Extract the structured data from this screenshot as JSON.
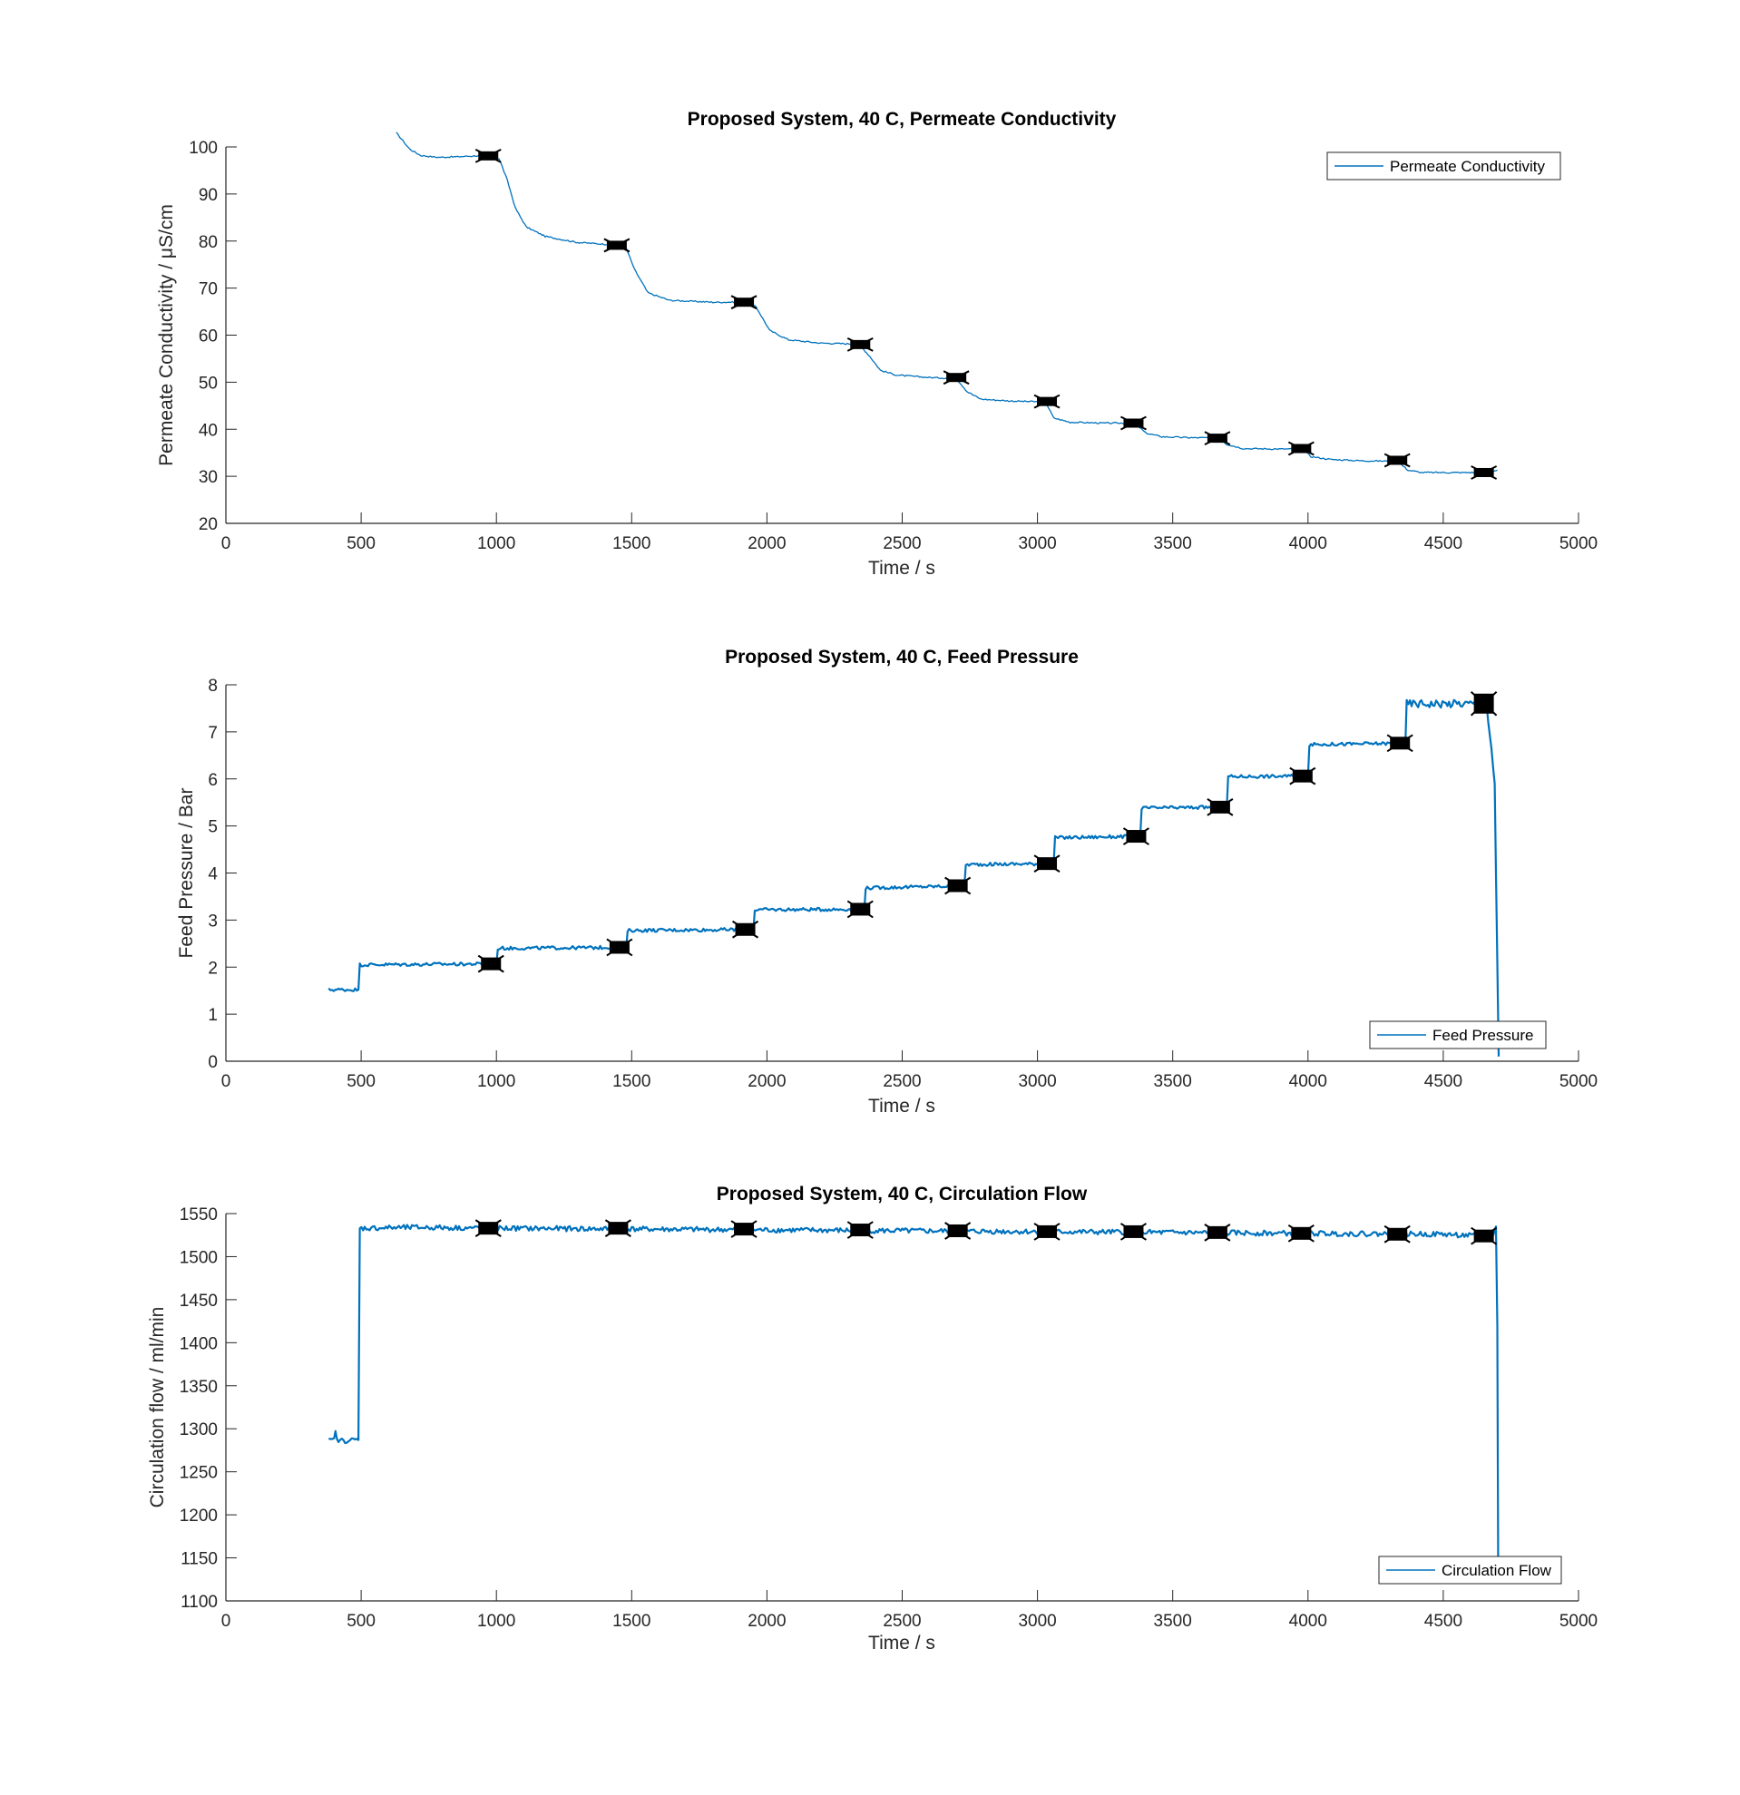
{
  "charts": [
    {
      "title": "Proposed System, 40 C, Permeate Conductivity",
      "xlabel": "Time / s",
      "ylabel": "Permeate Conductivity / μS/cm",
      "legend": "Permeate Conductivity"
    },
    {
      "title": "Proposed System, 40 C, Feed Pressure",
      "xlabel": "Time / s",
      "ylabel": "Feed Pressure / Bar",
      "legend": "Feed Pressure"
    },
    {
      "title": "Proposed System, 40 C, Circulation Flow",
      "xlabel": "Time / s",
      "ylabel": "Circulation flow / ml/min",
      "legend": "Circulation Flow"
    }
  ],
  "chart_data": [
    {
      "type": "line",
      "title": "Proposed System, 40 C, Permeate Conductivity",
      "xlabel": "Time / s",
      "ylabel": "Permeate Conductivity / μS/cm",
      "xlim": [
        0,
        5000
      ],
      "ylim": [
        20,
        100
      ],
      "xticks": [
        0,
        500,
        1000,
        1500,
        2000,
        2500,
        3000,
        3500,
        4000,
        4500,
        5000
      ],
      "yticks": [
        20,
        30,
        40,
        50,
        60,
        70,
        80,
        90,
        100
      ],
      "grid": false,
      "legend_position": "top-right",
      "line_color": "#0072BD",
      "marker_color": "#000000",
      "series": [
        {
          "name": "Permeate Conductivity",
          "x": [
            630,
            680,
            720,
            780,
            850,
            960,
            1010,
            1040,
            1070,
            1110,
            1180,
            1300,
            1440,
            1480,
            1510,
            1560,
            1640,
            1800,
            1920,
            1960,
            2010,
            2080,
            2200,
            2340,
            2380,
            2420,
            2480,
            2600,
            2700,
            2740,
            2790,
            2900,
            3030,
            3060,
            3120,
            3250,
            3360,
            3400,
            3460,
            3570,
            3670,
            3700,
            3760,
            3900,
            3980,
            4010,
            4080,
            4200,
            4330,
            4370,
            4420,
            4540,
            4660,
            4700
          ],
          "y": [
            103,
            99.5,
            98.2,
            97.8,
            97.9,
            98.2,
            97.5,
            93,
            87,
            83,
            81,
            79.7,
            79.2,
            78.5,
            74,
            69,
            67.4,
            67,
            67,
            66,
            61,
            59,
            58.3,
            58.1,
            55.5,
            52.5,
            51.5,
            51,
            50.8,
            48,
            46.4,
            46,
            45.8,
            42.4,
            41.5,
            41.3,
            41.3,
            39.2,
            38.4,
            38.2,
            38.2,
            36.8,
            35.9,
            35.8,
            35.8,
            34.2,
            33.6,
            33.3,
            33.2,
            31.3,
            30.8,
            30.8,
            30.8,
            31.3
          ]
        }
      ],
      "markers": {
        "x": [
          970,
          1445,
          1915,
          2345,
          2700,
          3035,
          3355,
          3665,
          3975,
          4330,
          4650
        ],
        "y": [
          98.1,
          79.1,
          67.0,
          58.0,
          51.0,
          45.9,
          41.3,
          38.1,
          35.9,
          33.4,
          30.8
        ]
      }
    },
    {
      "type": "line",
      "title": "Proposed System, 40 C, Feed Pressure",
      "xlabel": "Time / s",
      "ylabel": "Feed Pressure / Bar",
      "xlim": [
        0,
        5000
      ],
      "ylim": [
        0,
        8
      ],
      "xticks": [
        0,
        500,
        1000,
        1500,
        2000,
        2500,
        3000,
        3500,
        4000,
        4500,
        5000
      ],
      "yticks": [
        0,
        1,
        2,
        3,
        4,
        5,
        6,
        7,
        8
      ],
      "grid": false,
      "legend_position": "bottom-right",
      "line_color": "#0072BD",
      "marker_color": "#000000",
      "series": [
        {
          "name": "Feed Pressure",
          "x": [
            380,
            490,
            495,
            1000,
            1005,
            1480,
            1485,
            1950,
            1955,
            2360,
            2365,
            2730,
            2735,
            3060,
            3065,
            3380,
            3385,
            3700,
            3705,
            4000,
            4005,
            4360,
            4365,
            4660,
            4690,
            4700,
            4705
          ],
          "y": [
            1.52,
            1.52,
            2.05,
            2.07,
            2.4,
            2.42,
            2.78,
            2.8,
            3.22,
            3.23,
            3.68,
            3.73,
            4.18,
            4.2,
            4.75,
            4.78,
            5.38,
            5.4,
            6.05,
            6.06,
            6.73,
            6.76,
            7.6,
            7.6,
            5.9,
            2.1,
            0.1
          ]
        }
      ],
      "markers": {
        "x": [
          980,
          1455,
          1920,
          2345,
          2705,
          3035,
          3365,
          3675,
          3980,
          4340,
          4650
        ],
        "y": [
          2.07,
          2.42,
          2.8,
          3.23,
          3.73,
          4.2,
          4.78,
          5.4,
          6.06,
          6.76,
          7.6
        ]
      }
    },
    {
      "type": "line",
      "title": "Proposed System, 40 C, Circulation Flow",
      "xlabel": "Time / s",
      "ylabel": "Circulation flow / ml/min",
      "xlim": [
        0,
        5000
      ],
      "ylim": [
        1100,
        1550
      ],
      "xticks": [
        0,
        500,
        1000,
        1500,
        2000,
        2500,
        3000,
        3500,
        4000,
        4500,
        5000
      ],
      "yticks": [
        1100,
        1150,
        1200,
        1250,
        1300,
        1350,
        1400,
        1450,
        1500,
        1550
      ],
      "grid": false,
      "legend_position": "bottom-right",
      "line_color": "#0072BD",
      "marker_color": "#000000",
      "series": [
        {
          "name": "Circulation Flow",
          "x": [
            380,
            400,
            405,
            410,
            490,
            495,
            700,
            1000,
            1500,
            2000,
            2500,
            3000,
            3500,
            4000,
            4500,
            4680,
            4695,
            4700,
            4703
          ],
          "y": [
            1286,
            1287,
            1300,
            1286,
            1287,
            1533,
            1534,
            1533,
            1532,
            1531,
            1530,
            1529,
            1528,
            1527,
            1526,
            1523,
            1535,
            1420,
            1150
          ]
        }
      ],
      "markers": {
        "x": [
          970,
          1450,
          1915,
          2345,
          2705,
          3035,
          3355,
          3665,
          3975,
          4330,
          4650
        ],
        "y": [
          1533,
          1533,
          1532,
          1531,
          1530,
          1529,
          1529,
          1528,
          1527,
          1526,
          1524
        ]
      }
    }
  ]
}
